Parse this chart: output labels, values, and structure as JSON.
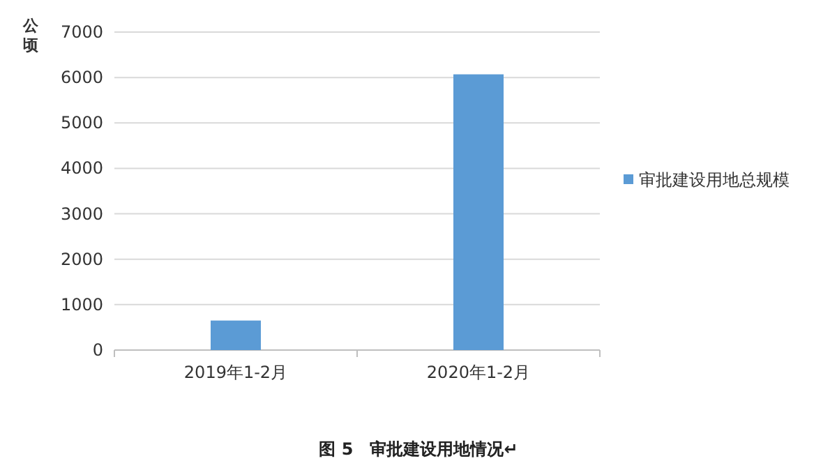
{
  "chart_data": {
    "type": "bar",
    "ylabel": "公顷",
    "categories": [
      "2019年1-2月",
      "2020年1-2月"
    ],
    "series": [
      {
        "name": "审批建设用地总规模",
        "color": "#5b9bd5",
        "values": [
          650,
          6070
        ]
      }
    ],
    "ylim": [
      0,
      7000
    ],
    "yticks": [
      0,
      1000,
      2000,
      3000,
      4000,
      5000,
      6000,
      7000
    ],
    "grid": "y",
    "legend": "right",
    "annotations": [
      "图 5　审批建设用地情况↵"
    ]
  }
}
